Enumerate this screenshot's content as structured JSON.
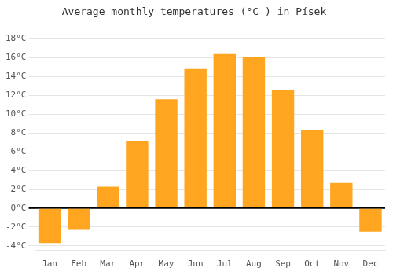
{
  "chart_data": {
    "type": "bar",
    "title": "Average monthly temperatures (°C ) in Písek",
    "categories": [
      "Jan",
      "Feb",
      "Mar",
      "Apr",
      "May",
      "Jun",
      "Jul",
      "Aug",
      "Sep",
      "Oct",
      "Nov",
      "Dec"
    ],
    "values": [
      -3.7,
      -2.3,
      2.3,
      7.1,
      11.6,
      14.8,
      16.4,
      16.1,
      12.6,
      8.3,
      2.7,
      -2.5
    ],
    "color": "#FFA520",
    "ylim": [
      -4.5,
      19.5
    ],
    "yticks": [
      {
        "value": -4,
        "label": "-4°C"
      },
      {
        "value": -2,
        "label": "-2°C"
      },
      {
        "value": 0,
        "label": "0°C"
      },
      {
        "value": 2,
        "label": "2°C"
      },
      {
        "value": 4,
        "label": "4°C"
      },
      {
        "value": 6,
        "label": "6°C"
      },
      {
        "value": 8,
        "label": "8°C"
      },
      {
        "value": 10,
        "label": "10°C"
      },
      {
        "value": 12,
        "label": "12°C"
      },
      {
        "value": 14,
        "label": "14°C"
      },
      {
        "value": 16,
        "label": "16°C"
      },
      {
        "value": 18,
        "label": "18°C"
      }
    ],
    "grid": true
  }
}
